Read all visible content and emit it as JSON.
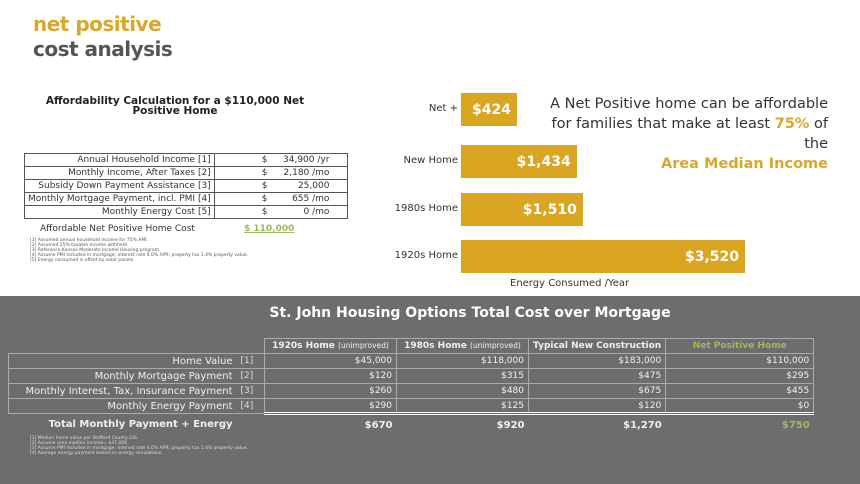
{
  "header": {
    "line1": "net positive",
    "line2": "cost analysis"
  },
  "calc": {
    "title": "Affordability Calculation for a $110,000 Net Positive Home",
    "rows": [
      {
        "label": "Annual Household Income [1]",
        "cur": "$",
        "value": "34,900 /yr"
      },
      {
        "label": "Monthly Income, After Taxes [2]",
        "cur": "$",
        "value": "2,180 /mo"
      },
      {
        "label": "Subsidy Down Payment Assistance [3]",
        "cur": "$",
        "value": "25,000"
      },
      {
        "label": "Monthly Mortgage Payment, incl. PMI [4]",
        "cur": "$",
        "value": "655 /mo"
      },
      {
        "label": "Monthly Energy Cost [5]",
        "cur": "$",
        "value": "0 /mo"
      }
    ],
    "result_label": "Affordable Net Positive Home Cost",
    "result_value": "$ 110,000",
    "footnotes": [
      "[1] Assumed annual household income for 75% AMI.",
      "[2] Assumed 25% taxable income withheld.",
      "[3] Reference Kansas Moderate Income Housing program.",
      "[4] Assume PMI Included in mortgage; interest rate 4.0% APR; property tax 1.4% property value.",
      "[5] Energy consumed is offset by solar panels."
    ]
  },
  "chart_data": {
    "type": "bar",
    "orientation": "horizontal",
    "categories": [
      "Net +",
      "New Home",
      "1980s Home",
      "1920s Home"
    ],
    "values": [
      424,
      1434,
      1510,
      3520
    ],
    "labels": [
      "$424",
      "$1,434",
      "$1,510",
      "$3,520"
    ],
    "xlabel": "Energy Consumed /Year",
    "color": "#DAA520"
  },
  "quote": {
    "a": "A Net Positive home can be affordable for families that make at least ",
    "pct": "75%",
    "b": " of the ",
    "c": "Area Median Income"
  },
  "options": {
    "title": "St. John Housing Options Total Cost over Mortgage",
    "columns": [
      {
        "name": "1920s Home",
        "note": "(unimproved)"
      },
      {
        "name": "1980s Home",
        "note": "(unimproved)"
      },
      {
        "name": "Typical New Construction",
        "note": ""
      },
      {
        "name": "Net Positive Home",
        "note": ""
      }
    ],
    "rows": [
      {
        "label": "Home Value",
        "ref": "[1]",
        "values": [
          "$45,000",
          "$118,000",
          "$183,000",
          "$110,000"
        ]
      },
      {
        "label": "Monthly Mortgage Payment",
        "ref": "[2]",
        "values": [
          "$120",
          "$315",
          "$475",
          "$295"
        ]
      },
      {
        "label": "Monthly Interest, Tax, Insurance Payment",
        "ref": "[3]",
        "values": [
          "$260",
          "$480",
          "$675",
          "$455"
        ]
      },
      {
        "label": "Monthly Energy Payment",
        "ref": "[4]",
        "values": [
          "$290",
          "$125",
          "$120",
          "$0"
        ]
      }
    ],
    "total": {
      "label": "Total Monthly Payment + Energy",
      "values": [
        "$670",
        "$920",
        "$1,270",
        "$750"
      ]
    },
    "footnotes": [
      "[1] Median home value per Stafford County GIS.",
      "[2] Assume area median income= $47,000",
      "[3] Assume PMI Included in mortgage; interest rate 4.0% APR; property tax 1.4% property value.",
      "[4] Average energy payment based on energy simulations."
    ]
  },
  "colors": {
    "gold": "#D9A82A",
    "green": "#9BBB59",
    "panel": "#6d6d6f"
  }
}
